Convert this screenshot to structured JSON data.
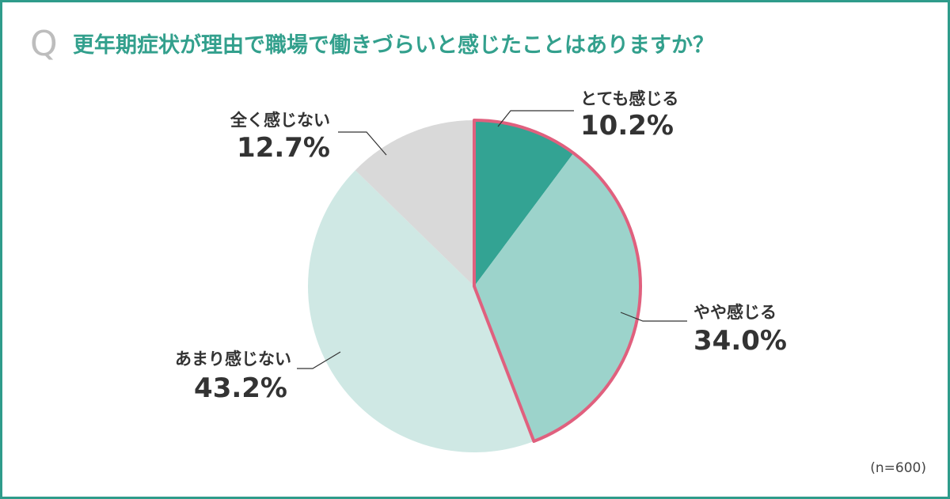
{
  "header": {
    "q_mark": "Q",
    "question": "更年期症状が理由で職場で働きづらいと感じたことはありますか？"
  },
  "footer": {
    "sample_size": "(n=600)"
  },
  "colors": {
    "frame": "#2f9c8b",
    "question_text": "#33a08d",
    "q_mark": "#bdbdbd",
    "highlight_outline": "#e0607e"
  },
  "chart_data": {
    "type": "pie",
    "title": "",
    "start_angle_deg": 0,
    "direction": "clockwise",
    "highlighted_group": [
      "とても感じる",
      "やや感じる"
    ],
    "slices": [
      {
        "label": "とても感じる",
        "value": 10.2,
        "value_label": "10.2%",
        "color": "#33a393"
      },
      {
        "label": "やや感じる",
        "value": 34.0,
        "value_label": "34.0%",
        "color": "#9cd3cb"
      },
      {
        "label": "あまり感じない",
        "value": 43.2,
        "value_label": "43.2%",
        "color": "#cfe8e4"
      },
      {
        "label": "全く感じない",
        "value": 12.7,
        "value_label": "12.7%",
        "color": "#d9d9d9"
      }
    ]
  }
}
